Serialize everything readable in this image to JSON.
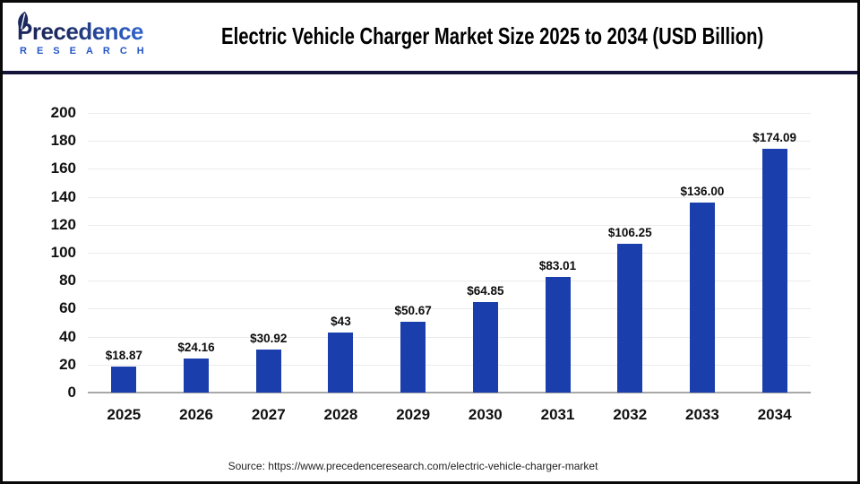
{
  "header": {
    "logo": {
      "brand": "Precedence",
      "sub": "RESEARCH"
    },
    "title": "Electric Vehicle Charger Market Size 2025 to 2034 (USD Billion)"
  },
  "footer": {
    "source": "Source: https://www.precedenceresearch.com/electric-vehicle-charger-market"
  },
  "colors": {
    "bar": "#1a3fac",
    "header_divider": "#13133b",
    "gridline": "#ebebeb",
    "axis_baseline": "#a8a8a8",
    "logo_dark_navy": "#1c295e",
    "logo_blue": "#3a73dd",
    "research_blue": "#2456c8"
  },
  "icons": {
    "leaf": "leaf-icon"
  },
  "chart_data": {
    "type": "bar",
    "title": "Electric Vehicle Charger Market Size 2025 to 2034 (USD Billion)",
    "unit": "USD Billion",
    "categories": [
      "2025",
      "2026",
      "2027",
      "2028",
      "2029",
      "2030",
      "2031",
      "2032",
      "2033",
      "2034"
    ],
    "values": [
      18.87,
      24.16,
      30.92,
      43,
      50.67,
      64.85,
      83.01,
      106.25,
      136.0,
      174.09
    ],
    "value_labels": [
      "$18.87",
      "$24.16",
      "$30.92",
      "$43",
      "$50.67",
      "$64.85",
      "$83.01",
      "$106.25",
      "$136.00",
      "$174.09"
    ],
    "xlabel": "",
    "ylabel": "",
    "ylim": [
      0,
      200
    ],
    "yticks": [
      0,
      20,
      40,
      60,
      80,
      100,
      120,
      140,
      160,
      180,
      200
    ],
    "grid": "horizontal",
    "legend": "none",
    "bar_color": "#1a3fac"
  }
}
